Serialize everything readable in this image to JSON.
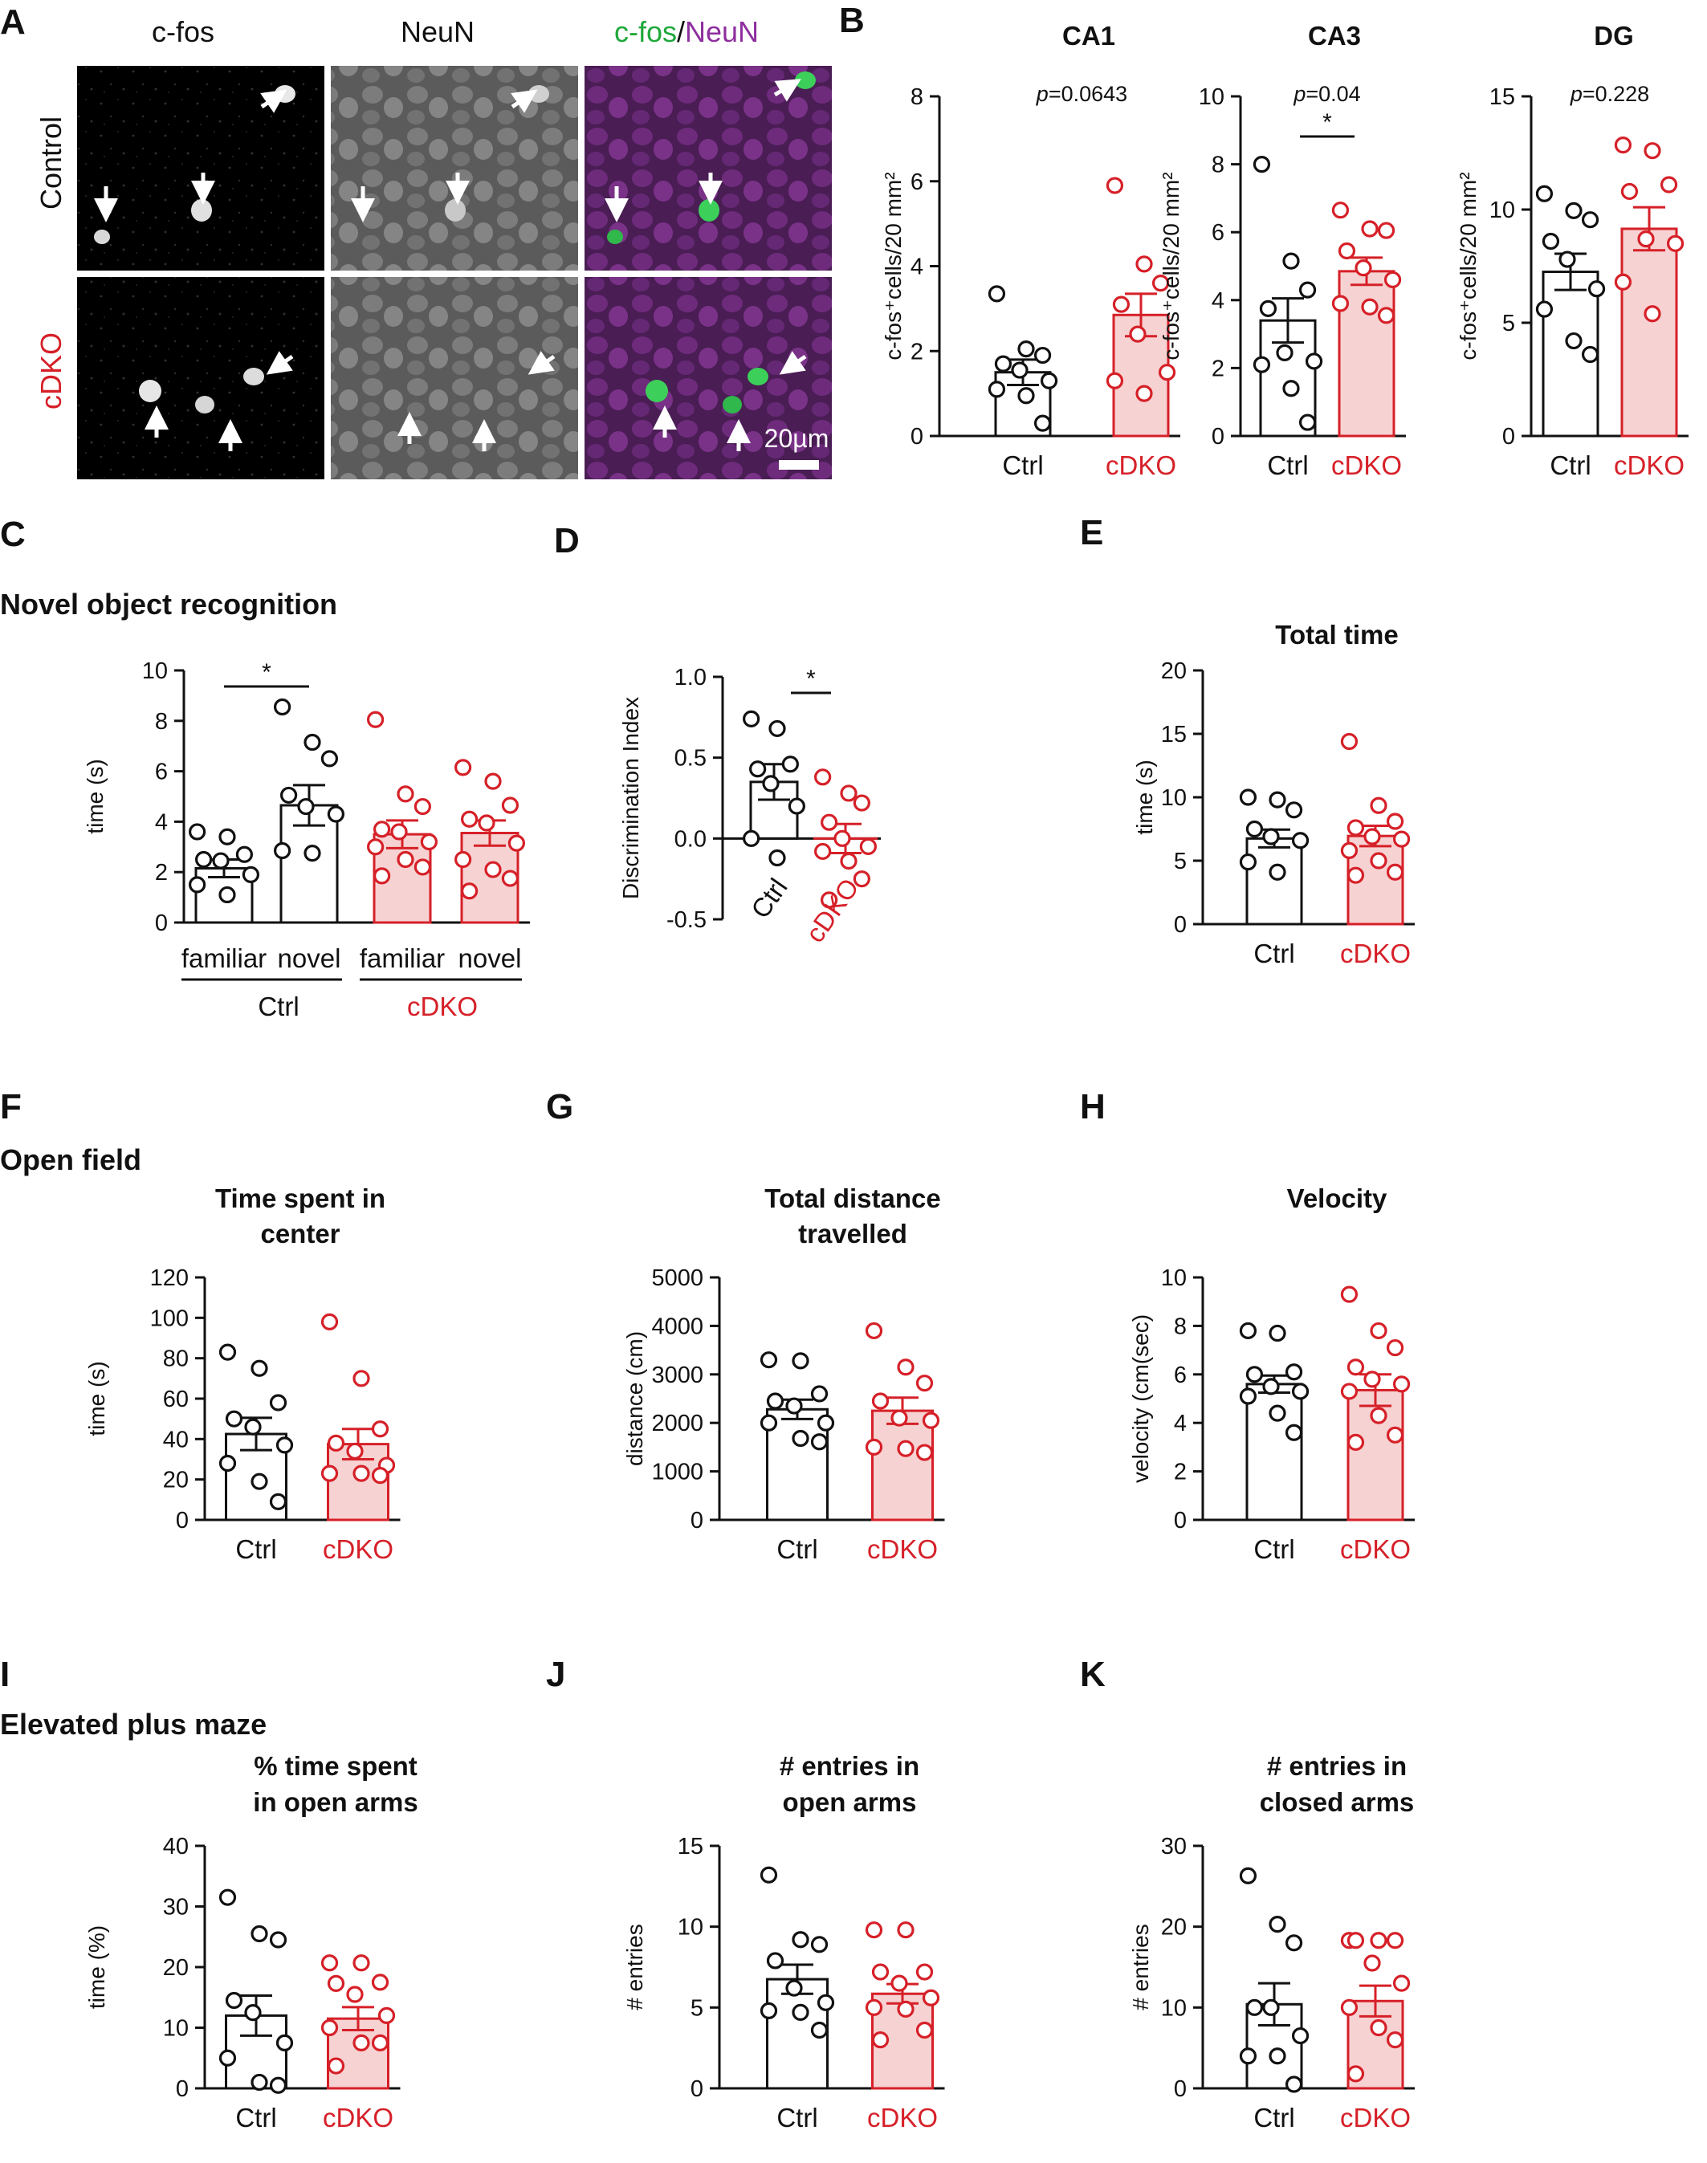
{
  "colors": {
    "ctrl": "#111111",
    "cdko": "#d62028",
    "cdko_fill": "#f7d2d2",
    "green": "#1fa83b",
    "purple": "#8e2f9e"
  },
  "panelA": {
    "label": "A",
    "columns": [
      "c-fos",
      "NeuN",
      "c-fos",
      "/",
      "NeuN"
    ],
    "rows": [
      "Control",
      "cDKO"
    ],
    "scale_bar": "20µm"
  },
  "sections": {
    "nor": "Novel object recognition",
    "of": "Open field",
    "epm": "Elevated plus maze"
  },
  "chart_data": [
    {
      "id": "B1",
      "type": "bar",
      "panel_label": "B",
      "title": "CA1",
      "ylabel": "c-fos⁺cells/20 mm²",
      "ylim": [
        0,
        8
      ],
      "yticks": [
        "0",
        "2",
        "4",
        "6",
        "8"
      ],
      "categories": [
        "Ctrl",
        "cDKO"
      ],
      "values": [
        1.5,
        2.85
      ],
      "sem": [
        0.3,
        0.5
      ],
      "points": [
        [
          3.35,
          2.05,
          1.9,
          1.7,
          1.55,
          1.3,
          1.1,
          0.95,
          0.3
        ],
        [
          5.9,
          4.05,
          3.6,
          3.1,
          2.4,
          1.5,
          1.3,
          1.0
        ]
      ],
      "annotation": "p=0.0643"
    },
    {
      "id": "B2",
      "type": "bar",
      "title": "CA3",
      "ylabel": "c-fos⁺cells/20 mm²",
      "ylim": [
        0,
        10
      ],
      "yticks": [
        "0",
        "2",
        "4",
        "6",
        "8",
        "10"
      ],
      "categories": [
        "Ctrl",
        "cDKO"
      ],
      "values": [
        3.4,
        4.85
      ],
      "sem": [
        0.65,
        0.4
      ],
      "points": [
        [
          8.0,
          5.15,
          4.3,
          3.75,
          2.45,
          2.2,
          2.1,
          1.4,
          0.4
        ],
        [
          6.65,
          6.1,
          6.05,
          5.45,
          4.95,
          4.6,
          3.9,
          3.8,
          3.55
        ]
      ],
      "annotation": "p=0.04",
      "sig": "*"
    },
    {
      "id": "B3",
      "type": "bar",
      "title": "DG",
      "ylabel": "c-fos⁺cells/20 mm²",
      "ylim": [
        0,
        15
      ],
      "yticks": [
        "0",
        "5",
        "10",
        "15"
      ],
      "categories": [
        "Ctrl",
        "cDKO"
      ],
      "values": [
        7.25,
        9.15
      ],
      "sem": [
        0.8,
        0.95
      ],
      "points": [
        [
          10.7,
          9.95,
          9.55,
          8.6,
          7.8,
          6.5,
          5.6,
          4.2,
          3.6
        ],
        [
          12.85,
          12.6,
          11.1,
          10.8,
          8.7,
          8.5,
          6.8,
          5.4
        ]
      ],
      "annotation": "p=0.228"
    },
    {
      "id": "C",
      "type": "bar",
      "panel_label": "C",
      "ylabel": "time (s)",
      "ylim": [
        0,
        10
      ],
      "yticks": [
        "0",
        "2",
        "4",
        "6",
        "8",
        "10"
      ],
      "categories": [
        "familiar",
        "novel",
        "familiar",
        "novel"
      ],
      "groups": [
        "Ctrl",
        "cDKO"
      ],
      "values": [
        2.15,
        4.65,
        3.5,
        3.55
      ],
      "sem": [
        0.35,
        0.8,
        0.55,
        0.5
      ],
      "points": [
        [
          3.6,
          3.4,
          2.7,
          2.5,
          2.45,
          1.9,
          1.5,
          1.1
        ],
        [
          8.55,
          7.15,
          6.5,
          5.05,
          4.6,
          4.3,
          2.85,
          2.75
        ],
        [
          8.05,
          5.1,
          4.6,
          3.7,
          3.6,
          3.2,
          3.0,
          2.5,
          2.2,
          1.85
        ],
        [
          6.15,
          5.6,
          4.65,
          4.1,
          3.95,
          3.15,
          2.5,
          2.1,
          1.75,
          1.25
        ]
      ],
      "sig": "*"
    },
    {
      "id": "D",
      "type": "bar",
      "panel_label": "D",
      "ylabel": "Discrimination Index",
      "ylim": [
        -0.5,
        1.0
      ],
      "yticks": [
        "-0.5",
        "0.0",
        "0.5",
        "1.0"
      ],
      "categories": [
        "Ctrl",
        "cDKO"
      ],
      "values": [
        0.35,
        0.0
      ],
      "sem": [
        0.11,
        0.09
      ],
      "points": [
        [
          0.74,
          0.68,
          0.46,
          0.43,
          0.34,
          0.2,
          0.0,
          -0.12
        ],
        [
          0.38,
          0.28,
          0.22,
          0.1,
          0.0,
          -0.05,
          -0.08,
          -0.14,
          -0.25,
          -0.38
        ]
      ],
      "sig": "*"
    },
    {
      "id": "E",
      "type": "bar",
      "panel_label": "E",
      "title": "Total time",
      "ylabel": "time (s)",
      "ylim": [
        0,
        20
      ],
      "yticks": [
        "0",
        "5",
        "10",
        "15",
        "20"
      ],
      "categories": [
        "Ctrl",
        "cDKO"
      ],
      "values": [
        6.75,
        6.95
      ],
      "sem": [
        0.7,
        0.8
      ],
      "points": [
        [
          10.0,
          9.8,
          9.0,
          7.5,
          6.9,
          6.6,
          4.9,
          4.1
        ],
        [
          14.4,
          9.35,
          8.1,
          7.6,
          6.9,
          6.7,
          5.8,
          5.0,
          4.1,
          3.85
        ]
      ]
    },
    {
      "id": "F",
      "type": "bar",
      "panel_label": "F",
      "title": "Time spent in center",
      "ylabel": "time (s)",
      "ylim": [
        0,
        120
      ],
      "yticks": [
        "0",
        "20",
        "40",
        "60",
        "80",
        "100",
        "120"
      ],
      "categories": [
        "Ctrl",
        "cDKO"
      ],
      "values": [
        42.5,
        37.5
      ],
      "sem": [
        8.0,
        7.5
      ],
      "points": [
        [
          83,
          75,
          58,
          50,
          46,
          37,
          28,
          19,
          9
        ],
        [
          98,
          70,
          45,
          38,
          34,
          27,
          23,
          23,
          22
        ]
      ]
    },
    {
      "id": "G",
      "type": "bar",
      "panel_label": "G",
      "title": "Total distance travelled",
      "ylabel": "distance (cm)",
      "ylim": [
        0,
        5000
      ],
      "yticks": [
        "0",
        "1000",
        "2000",
        "3000",
        "4000",
        "5000"
      ],
      "categories": [
        "Ctrl",
        "cDKO"
      ],
      "values": [
        2280,
        2250
      ],
      "sem": [
        200,
        270
      ],
      "points": [
        [
          3300,
          3280,
          2600,
          2450,
          2350,
          2000,
          2000,
          1680,
          1610
        ],
        [
          3900,
          3150,
          2820,
          2450,
          2100,
          2050,
          1500,
          1470,
          1390
        ]
      ]
    },
    {
      "id": "H",
      "type": "bar",
      "panel_label": "H",
      "title": "Velocity",
      "ylabel": "velocity (cm(sec)",
      "ylim": [
        0,
        10
      ],
      "yticks": [
        "0",
        "2",
        "4",
        "6",
        "8",
        "10"
      ],
      "categories": [
        "Ctrl",
        "cDKO"
      ],
      "values": [
        5.6,
        5.35
      ],
      "sem": [
        0.35,
        0.65
      ],
      "points": [
        [
          7.8,
          7.7,
          6.1,
          6.0,
          5.5,
          5.3,
          5.1,
          4.4,
          3.6
        ],
        [
          9.3,
          7.8,
          7.1,
          6.3,
          5.8,
          5.6,
          5.3,
          4.3,
          3.5,
          3.2
        ]
      ]
    },
    {
      "id": "I",
      "type": "bar",
      "panel_label": "I",
      "title": "% time spent in open arms",
      "ylabel": "time (%)",
      "ylim": [
        0,
        40
      ],
      "yticks": [
        "0",
        "10",
        "20",
        "30",
        "40"
      ],
      "categories": [
        "Ctrl",
        "cDKO"
      ],
      "values": [
        12.0,
        11.5
      ],
      "sem": [
        3.3,
        1.9
      ],
      "points": [
        [
          31.5,
          25.5,
          24.5,
          14.5,
          12.5,
          7.5,
          5.0,
          1.0,
          0.5
        ],
        [
          20.7,
          20.7,
          17.5,
          17.3,
          15.5,
          12.0,
          10.0,
          7.5,
          7.5,
          3.7
        ]
      ]
    },
    {
      "id": "J",
      "type": "bar",
      "panel_label": "J",
      "title": "# entries in open arms",
      "ylabel": "# entries",
      "ylim": [
        0,
        15
      ],
      "yticks": [
        "0",
        "5",
        "10",
        "15"
      ],
      "categories": [
        "Ctrl",
        "cDKO"
      ],
      "values": [
        6.75,
        5.85
      ],
      "sem": [
        0.9,
        0.6
      ],
      "points": [
        [
          13.2,
          9.2,
          8.9,
          7.9,
          6.2,
          5.3,
          4.8,
          4.7,
          3.6
        ],
        [
          9.8,
          9.8,
          7.2,
          7.2,
          6.5,
          5.6,
          5.0,
          4.9,
          3.6,
          3.0
        ]
      ]
    },
    {
      "id": "K",
      "type": "bar",
      "panel_label": "K",
      "title": "# entries in closed arms",
      "ylabel": "# entries",
      "ylim": [
        0,
        30
      ],
      "yticks": [
        "0",
        "10",
        "20",
        "30"
      ],
      "categories": [
        "Ctrl",
        "cDKO"
      ],
      "values": [
        10.4,
        10.8
      ],
      "sem": [
        2.6,
        1.9
      ],
      "points": [
        [
          26.3,
          20.3,
          18.0,
          10.0,
          10.0,
          6.5,
          4.0,
          4.0,
          0.5
        ],
        [
          18.3,
          18.3,
          18.3,
          18.3,
          15.5,
          13.0,
          10.0,
          7.5,
          6.0,
          1.8
        ]
      ]
    }
  ]
}
